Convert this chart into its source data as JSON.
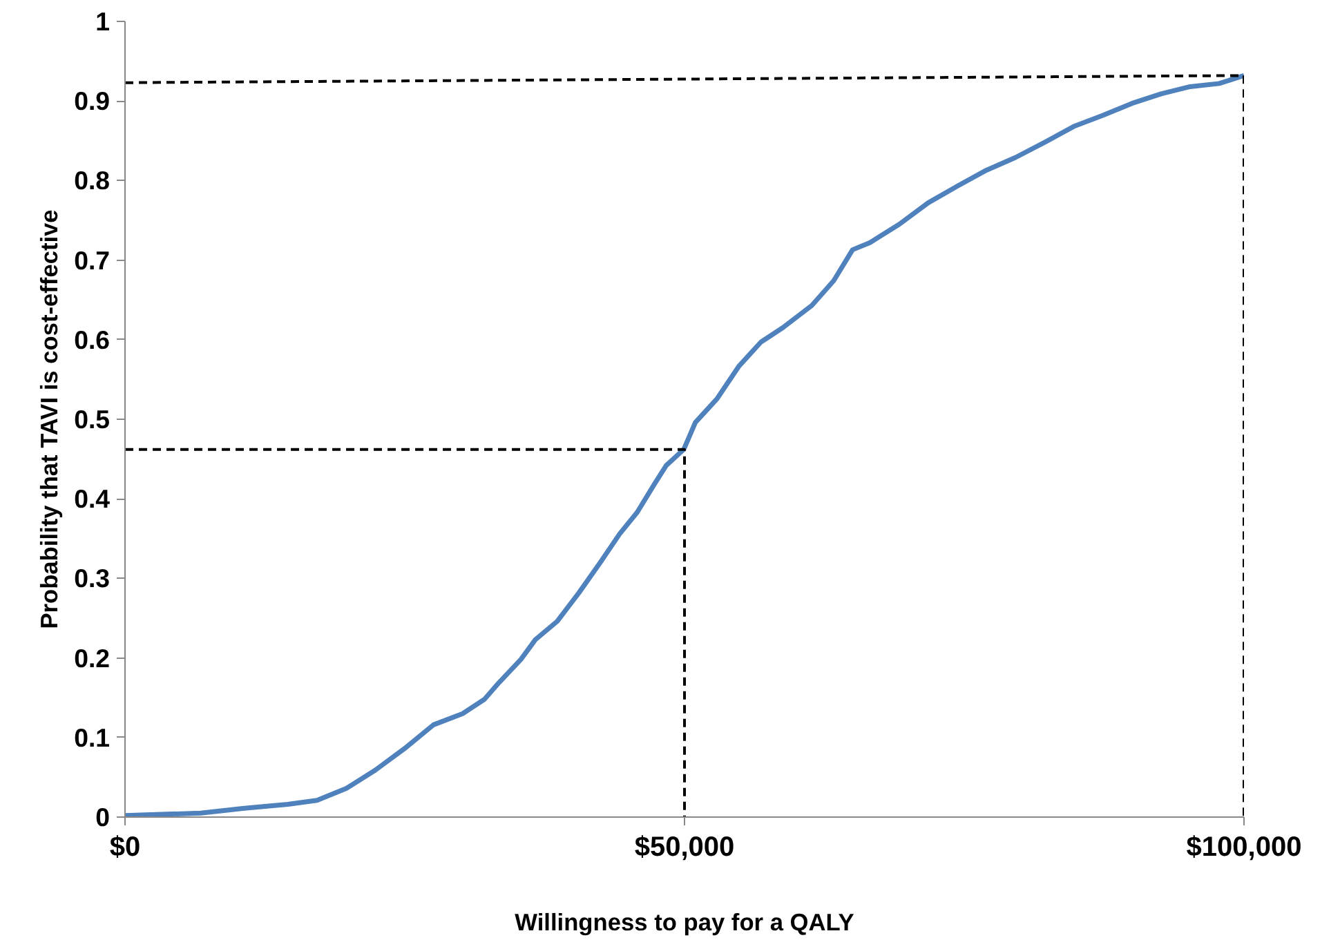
{
  "chart_data": {
    "type": "line",
    "xlabel": "Willingness to pay for a QALY",
    "ylabel": "Probability that TAVI is cost-effective",
    "xlim": [
      0,
      100000
    ],
    "ylim": [
      0,
      1
    ],
    "xticks": [
      {
        "value": 0,
        "label": "$0"
      },
      {
        "value": 50000,
        "label": "$50,000"
      },
      {
        "value": 100000,
        "label": "$100,000"
      }
    ],
    "yticks": [
      0,
      0.1,
      0.2,
      0.3,
      0.4,
      0.5,
      0.6,
      0.7,
      0.8,
      0.9,
      1
    ],
    "grid": false,
    "marker": "none",
    "series": [
      {
        "color": "#4f81bd",
        "line_style": "solid",
        "x": [
          0,
          6760,
          10660,
          14560,
          17160,
          19770,
          22370,
          24970,
          27570,
          30170,
          32120,
          33420,
          35370,
          36670,
          38620,
          40570,
          42520,
          44210,
          45770,
          47330,
          48370,
          49930,
          50970,
          52920,
          54880,
          56830,
          58780,
          61380,
          63330,
          65020,
          66580,
          69190,
          71780,
          74380,
          76980,
          79580,
          82180,
          84790,
          87390,
          89990,
          92590,
          95190,
          97790,
          100000
        ],
        "values": [
          0.002,
          0.005,
          0.011,
          0.016,
          0.021,
          0.036,
          0.059,
          0.086,
          0.116,
          0.13,
          0.148,
          0.169,
          0.198,
          0.223,
          0.246,
          0.282,
          0.321,
          0.356,
          0.383,
          0.419,
          0.442,
          0.462,
          0.496,
          0.526,
          0.567,
          0.597,
          0.615,
          0.643,
          0.674,
          0.713,
          0.722,
          0.745,
          0.772,
          0.793,
          0.813,
          0.829,
          0.848,
          0.868,
          0.882,
          0.897,
          0.909,
          0.918,
          0.922,
          0.932
        ]
      },
      {
        "color": "#000000",
        "line_style": "dashed",
        "x": [
          0,
          50000,
          50000
        ],
        "values": [
          0.462,
          0.462,
          0
        ]
      },
      {
        "color": "#000000",
        "line_style": "dashed",
        "x": [
          0,
          100000,
          100000
        ],
        "values": [
          0.923,
          0.932,
          0
        ]
      }
    ]
  }
}
